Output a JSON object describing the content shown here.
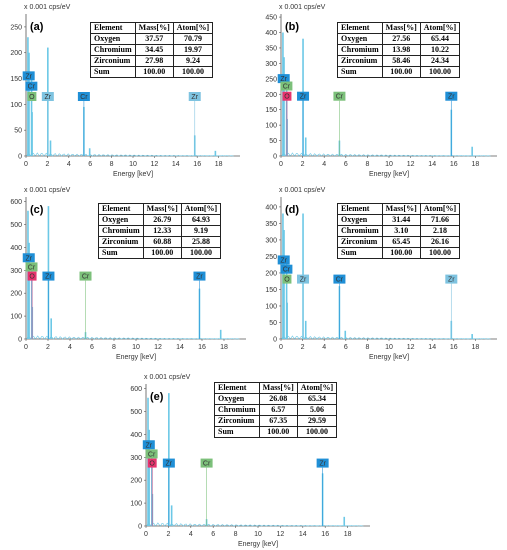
{
  "chart_data": [
    {
      "type": "line",
      "panel_label": "(a)",
      "y_unit": "x 0.001 cps/eV",
      "xlabel": "Energy [keV]",
      "xlim": [
        0,
        20
      ],
      "x_ticks": [
        "0",
        "2",
        "4",
        "6",
        "8",
        "10",
        "12",
        "14",
        "16",
        "18"
      ],
      "ylim": [
        0,
        275
      ],
      "y_ticks": [
        "0",
        "50",
        "100",
        "150",
        "200",
        "250"
      ],
      "spectrum_peaks": [
        {
          "x": 0.18,
          "y": 230
        },
        {
          "x": 0.28,
          "y": 200
        },
        {
          "x": 0.52,
          "y": 150
        },
        {
          "x": 0.57,
          "y": 85
        },
        {
          "x": 2.04,
          "y": 210
        },
        {
          "x": 2.29,
          "y": 30
        },
        {
          "x": 5.41,
          "y": 95
        },
        {
          "x": 5.95,
          "y": 15
        },
        {
          "x": 15.77,
          "y": 40
        },
        {
          "x": 17.7,
          "y": 10
        }
      ],
      "peak_markers": [
        {
          "label": "Zr",
          "x": 0.25,
          "y": 162,
          "color": "#1f8fd6",
          "line": false
        },
        {
          "label": "Cr",
          "x": 0.5,
          "y": 142,
          "color": "#1f8fd6",
          "line": false
        },
        {
          "label": "O",
          "x": 0.55,
          "y": 122,
          "color": "#7cc07a",
          "line": false
        },
        {
          "label": "Zr",
          "x": 2.04,
          "y": 122,
          "color": "#7ec3e0",
          "line": true
        },
        {
          "label": "Cr",
          "x": 5.41,
          "y": 122,
          "color": "#1f8fd6",
          "line": true
        },
        {
          "label": "Zr",
          "x": 15.77,
          "y": 122,
          "color": "#7ec3e0",
          "line": true
        }
      ],
      "composition": {
        "headers": [
          "Element",
          "Mass[%]",
          "Atom[%]"
        ],
        "rows": [
          [
            "Oxygen",
            "37.57",
            "70.79"
          ],
          [
            "Chromium",
            "34.45",
            "19.97"
          ],
          [
            "Zirconium",
            "27.98",
            "9.24"
          ],
          [
            "Sum",
            "100.00",
            "100.00"
          ]
        ]
      }
    },
    {
      "type": "line",
      "panel_label": "(b)",
      "y_unit": "x 0.001 cps/eV",
      "xlabel": "Energy [keV]",
      "xlim": [
        0,
        20
      ],
      "x_ticks": [
        "0",
        "2",
        "4",
        "6",
        "8",
        "10",
        "12",
        "14",
        "16",
        "18"
      ],
      "ylim": [
        0,
        460
      ],
      "y_ticks": [
        "0",
        "50",
        "100",
        "150",
        "200",
        "250",
        "300",
        "350",
        "400",
        "450"
      ],
      "spectrum_peaks": [
        {
          "x": 0.18,
          "y": 400
        },
        {
          "x": 0.28,
          "y": 320
        },
        {
          "x": 0.52,
          "y": 230
        },
        {
          "x": 0.57,
          "y": 120
        },
        {
          "x": 2.04,
          "y": 380
        },
        {
          "x": 2.29,
          "y": 60
        },
        {
          "x": 5.41,
          "y": 50
        },
        {
          "x": 15.77,
          "y": 150
        },
        {
          "x": 17.7,
          "y": 30
        }
      ],
      "peak_markers": [
        {
          "label": "Zr",
          "x": 0.25,
          "y": 262,
          "color": "#1f8fd6",
          "line": false
        },
        {
          "label": "Cr",
          "x": 0.5,
          "y": 238,
          "color": "#7cc07a",
          "line": false
        },
        {
          "label": "O",
          "x": 0.55,
          "y": 205,
          "color": "#e8336e",
          "line": true
        },
        {
          "label": "Zr",
          "x": 2.04,
          "y": 205,
          "color": "#1f8fd6",
          "line": true
        },
        {
          "label": "Cr",
          "x": 5.41,
          "y": 205,
          "color": "#7cc07a",
          "line": true
        },
        {
          "label": "Zr",
          "x": 15.77,
          "y": 205,
          "color": "#1f8fd6",
          "line": true
        }
      ],
      "composition": {
        "headers": [
          "Element",
          "Mass[%]",
          "Atom[%]"
        ],
        "rows": [
          [
            "Oxygen",
            "27.56",
            "65.44"
          ],
          [
            "Chromium",
            "13.98",
            "10.22"
          ],
          [
            "Zirconium",
            "58.46",
            "24.34"
          ],
          [
            "Sum",
            "100.00",
            "100.00"
          ]
        ]
      }
    },
    {
      "type": "line",
      "panel_label": "(c)",
      "y_unit": "x 0.001 cps/eV",
      "xlabel": "Energy [keV]",
      "xlim": [
        0,
        20
      ],
      "x_ticks": [
        "0",
        "2",
        "4",
        "6",
        "8",
        "10",
        "12",
        "14",
        "16",
        "18"
      ],
      "ylim": [
        0,
        620
      ],
      "y_ticks": [
        "0",
        "100",
        "200",
        "300",
        "400",
        "500",
        "600"
      ],
      "spectrum_peaks": [
        {
          "x": 0.18,
          "y": 560
        },
        {
          "x": 0.28,
          "y": 420
        },
        {
          "x": 0.52,
          "y": 300
        },
        {
          "x": 0.57,
          "y": 140
        },
        {
          "x": 2.04,
          "y": 580
        },
        {
          "x": 2.29,
          "y": 90
        },
        {
          "x": 5.41,
          "y": 30
        },
        {
          "x": 15.77,
          "y": 220
        },
        {
          "x": 17.7,
          "y": 40
        }
      ],
      "peak_markers": [
        {
          "label": "Zr",
          "x": 0.25,
          "y": 370,
          "color": "#1f8fd6",
          "line": false
        },
        {
          "label": "Cr",
          "x": 0.5,
          "y": 330,
          "color": "#7cc07a",
          "line": false
        },
        {
          "label": "O",
          "x": 0.55,
          "y": 290,
          "color": "#e8336e",
          "line": true
        },
        {
          "label": "Zr",
          "x": 2.04,
          "y": 290,
          "color": "#1f8fd6",
          "line": true
        },
        {
          "label": "Cr",
          "x": 5.41,
          "y": 290,
          "color": "#7cc07a",
          "line": true
        },
        {
          "label": "Zr",
          "x": 15.77,
          "y": 290,
          "color": "#1f8fd6",
          "line": true
        }
      ],
      "composition": {
        "headers": [
          "Element",
          "Mass[%]",
          "Atom[%]"
        ],
        "rows": [
          [
            "Oxygen",
            "26.79",
            "64.93"
          ],
          [
            "Chromium",
            "12.33",
            "9.19"
          ],
          [
            "Zirconium",
            "60.88",
            "25.88"
          ],
          [
            "Sum",
            "100.00",
            "100.00"
          ]
        ]
      }
    },
    {
      "type": "line",
      "panel_label": "(d)",
      "y_unit": "x 0.001 cps/eV",
      "xlabel": "Energy [keV]",
      "xlim": [
        0,
        20
      ],
      "x_ticks": [
        "0",
        "2",
        "4",
        "6",
        "8",
        "10",
        "12",
        "14",
        "16",
        "18"
      ],
      "ylim": [
        0,
        430
      ],
      "y_ticks": [
        "0",
        "50",
        "100",
        "150",
        "200",
        "250",
        "300",
        "350",
        "400"
      ],
      "spectrum_peaks": [
        {
          "x": 0.18,
          "y": 380
        },
        {
          "x": 0.28,
          "y": 330
        },
        {
          "x": 0.52,
          "y": 250
        },
        {
          "x": 0.57,
          "y": 110
        },
        {
          "x": 2.04,
          "y": 380
        },
        {
          "x": 2.29,
          "y": 55
        },
        {
          "x": 5.41,
          "y": 160
        },
        {
          "x": 5.95,
          "y": 25
        },
        {
          "x": 15.77,
          "y": 55
        },
        {
          "x": 17.7,
          "y": 15
        }
      ],
      "peak_markers": [
        {
          "label": "Zr",
          "x": 0.25,
          "y": 250,
          "color": "#1f8fd6",
          "line": false
        },
        {
          "label": "Cr",
          "x": 0.5,
          "y": 222,
          "color": "#1f8fd6",
          "line": false
        },
        {
          "label": "O",
          "x": 0.55,
          "y": 192,
          "color": "#7cc07a",
          "line": false
        },
        {
          "label": "Zr",
          "x": 2.04,
          "y": 192,
          "color": "#7ec3e0",
          "line": true
        },
        {
          "label": "Cr",
          "x": 5.41,
          "y": 192,
          "color": "#1f8fd6",
          "line": true
        },
        {
          "label": "Zr",
          "x": 15.77,
          "y": 192,
          "color": "#7ec3e0",
          "line": true
        }
      ],
      "composition": {
        "headers": [
          "Element",
          "Mass[%]",
          "Atom[%]"
        ],
        "rows": [
          [
            "Oxygen",
            "31.44",
            "71.66"
          ],
          [
            "Chromium",
            "3.10",
            "2.18"
          ],
          [
            "Zirconium",
            "65.45",
            "26.16"
          ],
          [
            "Sum",
            "100.00",
            "100.00"
          ]
        ]
      }
    },
    {
      "type": "line",
      "panel_label": "(e)",
      "y_unit": "x 0.001 cps/eV",
      "xlabel": "Energy [keV]",
      "xlim": [
        0,
        20
      ],
      "x_ticks": [
        "0",
        "2",
        "4",
        "6",
        "8",
        "10",
        "12",
        "14",
        "16",
        "18"
      ],
      "ylim": [
        0,
        620
      ],
      "y_ticks": [
        "0",
        "100",
        "200",
        "300",
        "400",
        "500",
        "600"
      ],
      "spectrum_peaks": [
        {
          "x": 0.18,
          "y": 560
        },
        {
          "x": 0.28,
          "y": 420
        },
        {
          "x": 0.52,
          "y": 300
        },
        {
          "x": 0.57,
          "y": 140
        },
        {
          "x": 2.04,
          "y": 580
        },
        {
          "x": 2.29,
          "y": 90
        },
        {
          "x": 5.41,
          "y": 30
        },
        {
          "x": 15.77,
          "y": 230
        },
        {
          "x": 17.7,
          "y": 40
        }
      ],
      "peak_markers": [
        {
          "label": "Zr",
          "x": 0.25,
          "y": 370,
          "color": "#1f8fd6",
          "line": false
        },
        {
          "label": "Cr",
          "x": 0.5,
          "y": 330,
          "color": "#7cc07a",
          "line": false
        },
        {
          "label": "O",
          "x": 0.55,
          "y": 290,
          "color": "#e8336e",
          "line": true
        },
        {
          "label": "Zr",
          "x": 2.04,
          "y": 290,
          "color": "#1f8fd6",
          "line": true
        },
        {
          "label": "Cr",
          "x": 5.41,
          "y": 290,
          "color": "#7cc07a",
          "line": true
        },
        {
          "label": "Zr",
          "x": 15.77,
          "y": 290,
          "color": "#1f8fd6",
          "line": true
        }
      ],
      "composition": {
        "headers": [
          "Element",
          "Mass[%]",
          "Atom[%]"
        ],
        "rows": [
          [
            "Oxygen",
            "26.08",
            "65.34"
          ],
          [
            "Chromium",
            "6.57",
            "5.06"
          ],
          [
            "Zirconium",
            "67.35",
            "29.59"
          ],
          [
            "Sum",
            "100.00",
            "100.00"
          ]
        ]
      }
    }
  ],
  "colors": {
    "spectrum": "#6cc8e6",
    "axis": "#555555",
    "background": "#ffffff"
  }
}
